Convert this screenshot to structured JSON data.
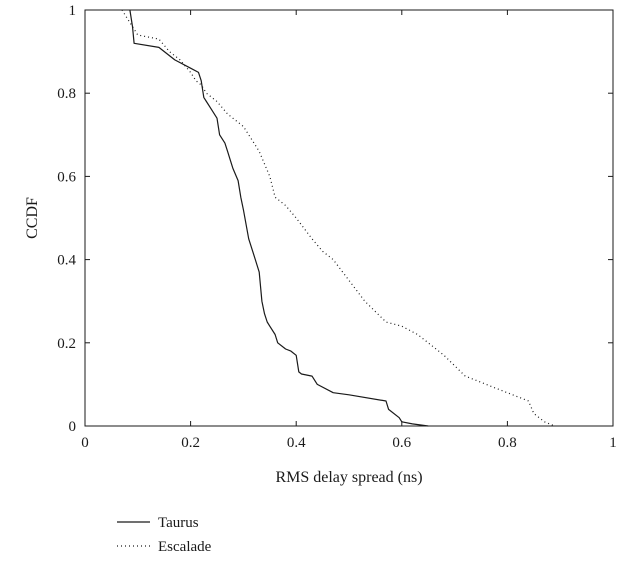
{
  "chart_data": {
    "type": "line",
    "title": "",
    "xlabel": "RMS delay spread (ns)",
    "ylabel": "CCDF",
    "xlim": [
      0,
      1
    ],
    "ylim": [
      0,
      1
    ],
    "xticks": [
      "0",
      "0.2",
      "0.4",
      "0.6",
      "0.8",
      "1"
    ],
    "yticks": [
      "0",
      "0.2",
      "0.4",
      "0.6",
      "0.8",
      "1"
    ],
    "grid": false,
    "legend_position": "bottom-left, below axes",
    "series": [
      {
        "name": "Taurus",
        "style": "solid",
        "color": "#1a1a1a",
        "x": [
          0.085,
          0.09,
          0.093,
          0.14,
          0.17,
          0.2,
          0.215,
          0.22,
          0.225,
          0.23,
          0.24,
          0.25,
          0.255,
          0.265,
          0.27,
          0.275,
          0.28,
          0.29,
          0.295,
          0.3,
          0.31,
          0.32,
          0.33,
          0.335,
          0.34,
          0.345,
          0.35,
          0.36,
          0.365,
          0.38,
          0.39,
          0.4,
          0.405,
          0.41,
          0.43,
          0.44,
          0.47,
          0.5,
          0.57,
          0.575,
          0.595,
          0.6,
          0.62,
          0.65
        ],
        "y": [
          1.0,
          0.96,
          0.92,
          0.91,
          0.88,
          0.86,
          0.85,
          0.83,
          0.79,
          0.78,
          0.76,
          0.74,
          0.7,
          0.68,
          0.66,
          0.64,
          0.62,
          0.59,
          0.55,
          0.52,
          0.45,
          0.41,
          0.37,
          0.3,
          0.27,
          0.25,
          0.24,
          0.22,
          0.2,
          0.185,
          0.18,
          0.17,
          0.13,
          0.125,
          0.12,
          0.1,
          0.08,
          0.075,
          0.06,
          0.04,
          0.02,
          0.01,
          0.005,
          0.0
        ]
      },
      {
        "name": "Escalade",
        "style": "dotted",
        "color": "#1a1a1a",
        "x": [
          0.07,
          0.08,
          0.09,
          0.1,
          0.14,
          0.16,
          0.18,
          0.2,
          0.21,
          0.22,
          0.23,
          0.25,
          0.27,
          0.3,
          0.32,
          0.33,
          0.35,
          0.36,
          0.38,
          0.4,
          0.43,
          0.45,
          0.47,
          0.5,
          0.53,
          0.57,
          0.6,
          0.63,
          0.65,
          0.68,
          0.72,
          0.74,
          0.78,
          0.82,
          0.84,
          0.85,
          0.87,
          0.89
        ],
        "y": [
          1.0,
          0.98,
          0.96,
          0.94,
          0.93,
          0.9,
          0.88,
          0.85,
          0.83,
          0.82,
          0.8,
          0.78,
          0.75,
          0.72,
          0.68,
          0.66,
          0.6,
          0.55,
          0.53,
          0.5,
          0.45,
          0.42,
          0.4,
          0.35,
          0.3,
          0.25,
          0.24,
          0.22,
          0.2,
          0.17,
          0.12,
          0.11,
          0.09,
          0.07,
          0.06,
          0.03,
          0.01,
          0.0
        ]
      }
    ]
  }
}
